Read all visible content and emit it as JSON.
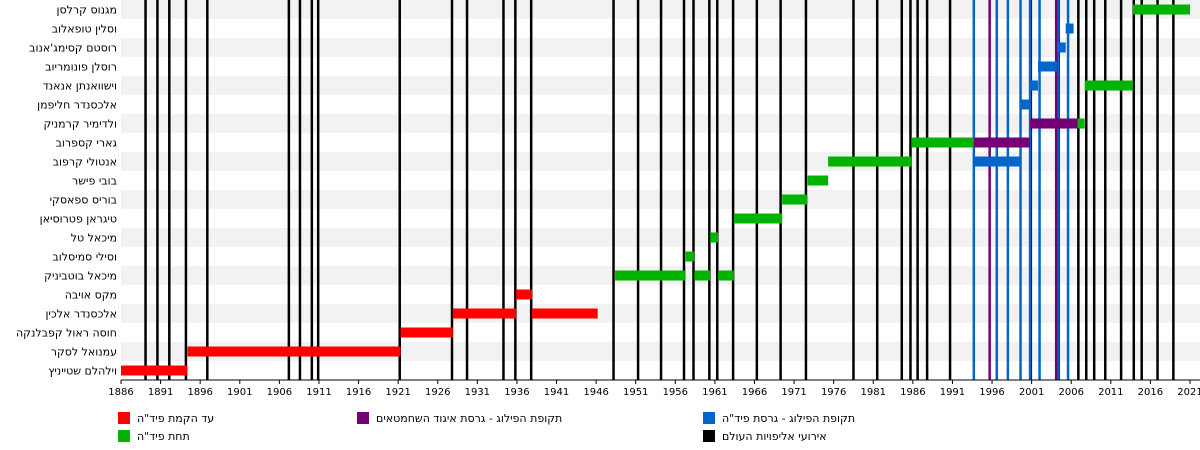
{
  "chart_data": {
    "type": "timeline",
    "x_range": [
      1886,
      2021
    ],
    "x_ticks": [
      "1886",
      "1891",
      "1896",
      "1901",
      "1906",
      "1911",
      "1916",
      "1921",
      "1926",
      "1931",
      "1936",
      "1941",
      "1946",
      "1951",
      "1956",
      "1961",
      "1966",
      "1971",
      "1976",
      "1981",
      "1986",
      "1991",
      "1996",
      "2001",
      "2006",
      "2011",
      "2016",
      "2021"
    ],
    "rows": [
      "מגנוס קרלסן",
      "וסלין טופאלוב",
      "רוסטם קסימג'אנוב",
      "רוסלן פונומריוב",
      "וישוואנתן אנאנד",
      "אלכסנדר חליפמן",
      "ולדימיר קרמניק",
      "גארי קספרוב",
      "אנטולי קרפוב",
      "בובי פישר",
      "בוריס ספאסקי",
      "טיגראן פטרוסיאן",
      "מיכאל טל",
      "וסילי סמיסלוב",
      "מיכאל בוטביניק",
      "מקס אויבה",
      "אלכסנדר אלכין",
      "חוסה ראול קפבלנקה",
      "עמנואל לסקר",
      "וילהלם שטייניץ"
    ],
    "bars": [
      {
        "row": 19,
        "start": 1886.0,
        "end": 1894.4,
        "color": "#ff0000"
      },
      {
        "row": 18,
        "start": 1894.4,
        "end": 1921.3,
        "color": "#ff0000"
      },
      {
        "row": 17,
        "start": 1921.3,
        "end": 1927.9,
        "color": "#ff0000"
      },
      {
        "row": 16,
        "start": 1927.9,
        "end": 1935.9,
        "color": "#ff0000"
      },
      {
        "row": 16,
        "start": 1937.9,
        "end": 1946.2,
        "color": "#ff0000"
      },
      {
        "row": 15,
        "start": 1935.9,
        "end": 1937.9,
        "color": "#ff0000"
      },
      {
        "row": 14,
        "start": 1948.4,
        "end": 1957.3,
        "color": "#00b300"
      },
      {
        "row": 14,
        "start": 1958.4,
        "end": 1960.4,
        "color": "#00b300"
      },
      {
        "row": 14,
        "start": 1961.4,
        "end": 1963.4,
        "color": "#00b300"
      },
      {
        "row": 13,
        "start": 1957.3,
        "end": 1958.4,
        "color": "#00b300"
      },
      {
        "row": 12,
        "start": 1960.4,
        "end": 1961.4,
        "color": "#00b300"
      },
      {
        "row": 11,
        "start": 1963.4,
        "end": 1969.5,
        "color": "#00b300"
      },
      {
        "row": 10,
        "start": 1969.5,
        "end": 1972.7,
        "color": "#00b300"
      },
      {
        "row": 9,
        "start": 1972.7,
        "end": 1975.3,
        "color": "#00b300"
      },
      {
        "row": 8,
        "start": 1975.3,
        "end": 1985.8,
        "color": "#00b300"
      },
      {
        "row": 8,
        "start": 1993.7,
        "end": 1999.5,
        "color": "#0066cc"
      },
      {
        "row": 7,
        "start": 1985.8,
        "end": 1993.7,
        "color": "#00b300"
      },
      {
        "row": 7,
        "start": 1993.7,
        "end": 2000.8,
        "color": "#750075"
      },
      {
        "row": 6,
        "start": 2000.8,
        "end": 2006.8,
        "color": "#750075"
      },
      {
        "row": 6,
        "start": 2006.8,
        "end": 2007.7,
        "color": "#00b300"
      },
      {
        "row": 5,
        "start": 1999.5,
        "end": 2000.8,
        "color": "#0066cc"
      },
      {
        "row": 4,
        "start": 2000.8,
        "end": 2001.8,
        "color": "#0066cc"
      },
      {
        "row": 4,
        "start": 2007.7,
        "end": 2013.8,
        "color": "#00b300"
      },
      {
        "row": 3,
        "start": 2001.8,
        "end": 2004.2,
        "color": "#0066cc"
      },
      {
        "row": 2,
        "start": 2004.2,
        "end": 2005.3,
        "color": "#0066cc"
      },
      {
        "row": 1,
        "start": 2005.3,
        "end": 2006.3,
        "color": "#0066cc"
      },
      {
        "row": 0,
        "start": 2013.8,
        "end": 2021.0,
        "color": "#00b300"
      }
    ],
    "event_lines": [
      {
        "x": 1889.1,
        "color": "#000000"
      },
      {
        "x": 1890.6,
        "color": "#000000"
      },
      {
        "x": 1892.1,
        "color": "#000000"
      },
      {
        "x": 1894.2,
        "color": "#000000"
      },
      {
        "x": 1896.9,
        "color": "#000000"
      },
      {
        "x": 1907.2,
        "color": "#000000"
      },
      {
        "x": 1908.6,
        "color": "#000000"
      },
      {
        "x": 1910.1,
        "color": "#000000"
      },
      {
        "x": 1910.9,
        "color": "#000000"
      },
      {
        "x": 1921.2,
        "color": "#000000"
      },
      {
        "x": 1927.8,
        "color": "#000000"
      },
      {
        "x": 1929.7,
        "color": "#000000"
      },
      {
        "x": 1934.3,
        "color": "#000000"
      },
      {
        "x": 1935.8,
        "color": "#000000"
      },
      {
        "x": 1937.8,
        "color": "#000000"
      },
      {
        "x": 1948.2,
        "color": "#000000"
      },
      {
        "x": 1951.3,
        "color": "#000000"
      },
      {
        "x": 1954.2,
        "color": "#000000"
      },
      {
        "x": 1957.1,
        "color": "#000000"
      },
      {
        "x": 1958.3,
        "color": "#000000"
      },
      {
        "x": 1960.3,
        "color": "#000000"
      },
      {
        "x": 1961.3,
        "color": "#000000"
      },
      {
        "x": 1963.3,
        "color": "#000000"
      },
      {
        "x": 1966.3,
        "color": "#000000"
      },
      {
        "x": 1969.3,
        "color": "#000000"
      },
      {
        "x": 1972.5,
        "color": "#000000"
      },
      {
        "x": 1978.5,
        "color": "#000000"
      },
      {
        "x": 1981.5,
        "color": "#000000"
      },
      {
        "x": 1984.6,
        "color": "#000000"
      },
      {
        "x": 1985.7,
        "color": "#000000"
      },
      {
        "x": 1986.6,
        "color": "#000000"
      },
      {
        "x": 1987.8,
        "color": "#000000"
      },
      {
        "x": 1990.7,
        "color": "#000000"
      },
      {
        "x": 2000.9,
        "color": "#000000"
      },
      {
        "x": 2004.4,
        "color": "#000000"
      },
      {
        "x": 2006.9,
        "color": "#000000"
      },
      {
        "x": 2007.9,
        "color": "#000000"
      },
      {
        "x": 2008.9,
        "color": "#000000"
      },
      {
        "x": 2010.3,
        "color": "#000000"
      },
      {
        "x": 2012.3,
        "color": "#000000"
      },
      {
        "x": 2013.9,
        "color": "#000000"
      },
      {
        "x": 2014.9,
        "color": "#000000"
      },
      {
        "x": 2016.9,
        "color": "#000000"
      },
      {
        "x": 2018.9,
        "color": "#000000"
      },
      {
        "x": 1993.7,
        "color": "#0066cc"
      },
      {
        "x": 1996.6,
        "color": "#0066cc"
      },
      {
        "x": 1998.0,
        "color": "#0066cc"
      },
      {
        "x": 1999.6,
        "color": "#0066cc"
      },
      {
        "x": 2000.8,
        "color": "#0066cc"
      },
      {
        "x": 2002.0,
        "color": "#0066cc"
      },
      {
        "x": 2004.3,
        "color": "#0066cc"
      },
      {
        "x": 2005.6,
        "color": "#0066cc"
      },
      {
        "x": 1995.7,
        "color": "#750075"
      },
      {
        "x": 2004.1,
        "color": "#750075"
      }
    ],
    "legend_position": "bottom",
    "legend": [
      {
        "label": "עד הקמת פיד\"ה",
        "color": "#ff0000"
      },
      {
        "label": "תחת פיד\"ה",
        "color": "#00b300"
      },
      {
        "label": "תקופת הפילוג - גרסת איגוד השחמטאים",
        "color": "#750075"
      },
      {
        "label": "תקופת הפילוג - גרסת פיד\"ה",
        "color": "#0066cc"
      },
      {
        "label": "אירועי אליפויות העולם",
        "color": "#000000"
      }
    ]
  }
}
